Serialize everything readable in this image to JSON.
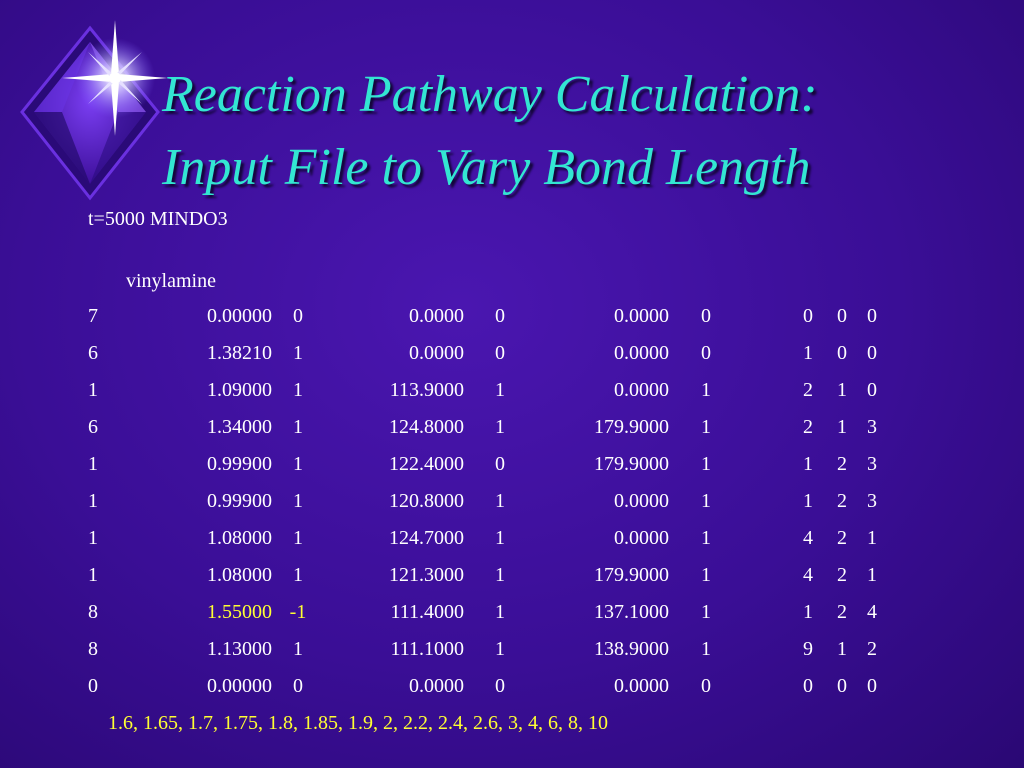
{
  "slide": {
    "title_line1": "Reaction Pathway Calculation:",
    "title_line2": "Input File to Vary Bond Length",
    "keyword_line": "t=5000 MINDO3",
    "molecule": "vinylamine",
    "highlight_color": "#ffff33",
    "title_color": "#33e6d2",
    "rows": [
      {
        "atom": "7",
        "bond": "0.00000",
        "bond_flag": "0",
        "angle": "0.0000",
        "angle_flag": "0",
        "dihedral": "0.0000",
        "dihedral_flag": "0",
        "c1": "0",
        "c2": "0",
        "c3": "0"
      },
      {
        "atom": "6",
        "bond": "1.38210",
        "bond_flag": "1",
        "angle": "0.0000",
        "angle_flag": "0",
        "dihedral": "0.0000",
        "dihedral_flag": "0",
        "c1": "1",
        "c2": "0",
        "c3": "0"
      },
      {
        "atom": "1",
        "bond": "1.09000",
        "bond_flag": "1",
        "angle": "113.9000",
        "angle_flag": "1",
        "dihedral": "0.0000",
        "dihedral_flag": "1",
        "c1": "2",
        "c2": "1",
        "c3": "0"
      },
      {
        "atom": "6",
        "bond": "1.34000",
        "bond_flag": "1",
        "angle": "124.8000",
        "angle_flag": "1",
        "dihedral": "179.9000",
        "dihedral_flag": "1",
        "c1": "2",
        "c2": "1",
        "c3": "3"
      },
      {
        "atom": "1",
        "bond": "0.99900",
        "bond_flag": "1",
        "angle": "122.4000",
        "angle_flag": "0",
        "dihedral": "179.9000",
        "dihedral_flag": "1",
        "c1": "1",
        "c2": "2",
        "c3": "3"
      },
      {
        "atom": "1",
        "bond": "0.99900",
        "bond_flag": "1",
        "angle": "120.8000",
        "angle_flag": "1",
        "dihedral": "0.0000",
        "dihedral_flag": "1",
        "c1": "1",
        "c2": "2",
        "c3": "3"
      },
      {
        "atom": "1",
        "bond": "1.08000",
        "bond_flag": "1",
        "angle": "124.7000",
        "angle_flag": "1",
        "dihedral": "0.0000",
        "dihedral_flag": "1",
        "c1": "4",
        "c2": "2",
        "c3": "1"
      },
      {
        "atom": "1",
        "bond": "1.08000",
        "bond_flag": "1",
        "angle": "121.3000",
        "angle_flag": "1",
        "dihedral": "179.9000",
        "dihedral_flag": "1",
        "c1": "4",
        "c2": "2",
        "c3": "1"
      },
      {
        "atom": "8",
        "bond": "1.55000",
        "bond_flag": "-1",
        "angle": "111.4000",
        "angle_flag": "1",
        "dihedral": "137.1000",
        "dihedral_flag": "1",
        "c1": "1",
        "c2": "2",
        "c3": "4"
      },
      {
        "atom": "8",
        "bond": "1.13000",
        "bond_flag": "1",
        "angle": "111.1000",
        "angle_flag": "1",
        "dihedral": "138.9000",
        "dihedral_flag": "1",
        "c1": "9",
        "c2": "1",
        "c3": "2"
      },
      {
        "atom": "0",
        "bond": "0.00000",
        "bond_flag": "0",
        "angle": "0.0000",
        "angle_flag": "0",
        "dihedral": "0.0000",
        "dihedral_flag": "0",
        "c1": "0",
        "c2": "0",
        "c3": "0"
      }
    ],
    "bond_values_line": "1.6, 1.65, 1.7, 1.75, 1.8, 1.85, 1.9, 2, 2.2, 2.4, 2.6, 3, 4, 6, 8, 10"
  },
  "icons": {
    "logo": "diamond-star-icon"
  }
}
